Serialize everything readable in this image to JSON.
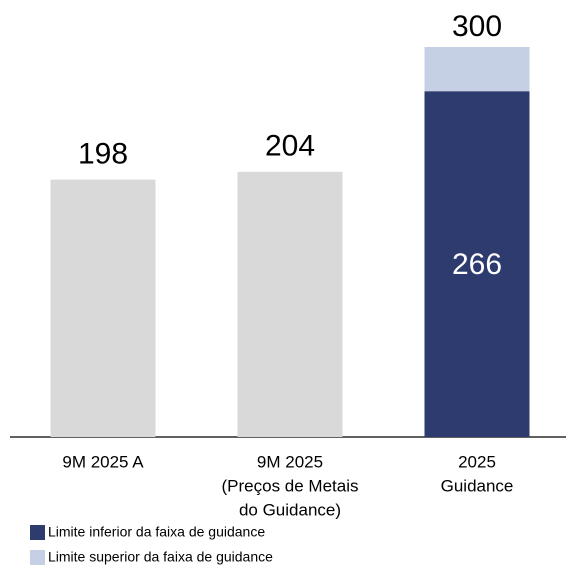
{
  "chart_data": {
    "type": "bar",
    "categories": [
      [
        "9M 2025 A"
      ],
      [
        "9M 2025",
        "(Preços de Metais",
        "do Guidance)"
      ],
      [
        "2025",
        "Guidance"
      ]
    ],
    "values": [
      198,
      204,
      null
    ],
    "color": "#d9d9d9",
    "series": [
      {
        "name": "Limite inferior da faixa de guidance",
        "color": "#2e3b6e",
        "values": [
          null,
          null,
          266
        ]
      },
      {
        "name": "Limite superior da faixa de guidance",
        "color": "#c5d0e4",
        "values": [
          null,
          null,
          34
        ]
      }
    ],
    "totals": [
      null,
      null,
      300
    ],
    "ylim": [
      0,
      300
    ]
  }
}
